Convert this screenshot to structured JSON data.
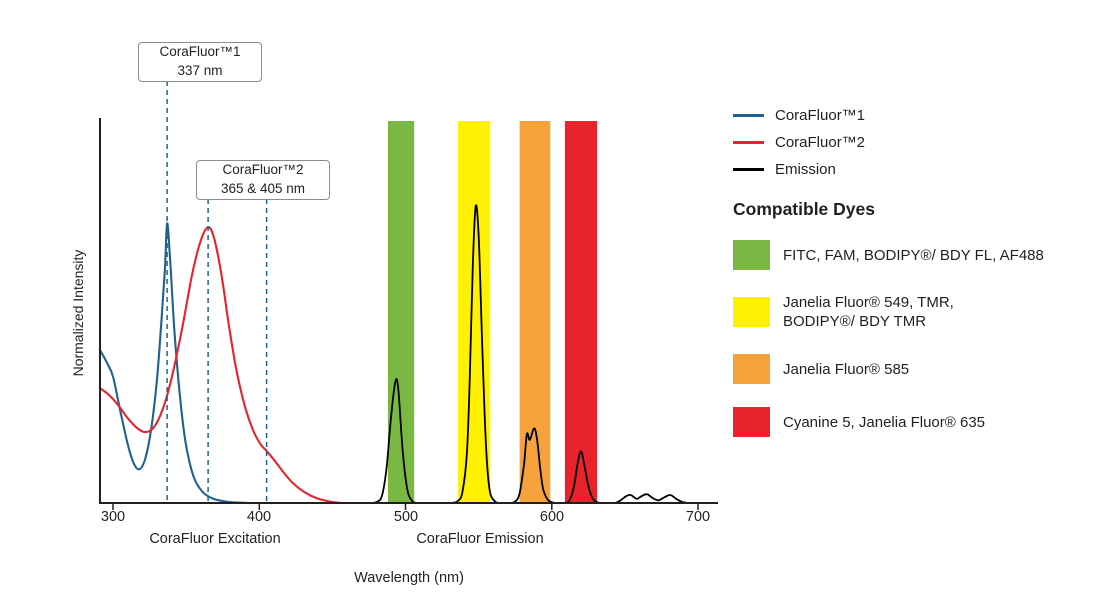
{
  "chart_data": {
    "type": "line",
    "title": "",
    "xlabel": "Wavelength (nm)",
    "ylabel": "Normalized Intensity",
    "x_ticks": [
      "300",
      "400",
      "500",
      "600",
      "700"
    ],
    "x_range_nm": [
      300,
      713
    ],
    "ylim": [
      0,
      1
    ],
    "grid": false,
    "legend_position": "right",
    "section_labels": [
      {
        "label": "CoraFluor Excitation",
        "center_nm": 370
      },
      {
        "label": "CoraFluor Emission",
        "center_nm": 551
      }
    ],
    "bands": [
      {
        "name": "green",
        "color": "#78b843",
        "from_nm": 488,
        "to_nm": 506
      },
      {
        "name": "yellow",
        "color": "#fef102",
        "from_nm": 536,
        "to_nm": 558
      },
      {
        "name": "orange",
        "color": "#f6a23c",
        "from_nm": 578,
        "to_nm": 599
      },
      {
        "name": "red",
        "color": "#e8232b",
        "from_nm": 609,
        "to_nm": 631
      }
    ],
    "series": [
      {
        "name": "CoraFluor™1",
        "color": "#1f618f",
        "points": [
          [
            291,
            0.4
          ],
          [
            296,
            0.365
          ],
          [
            300,
            0.33
          ],
          [
            305,
            0.24
          ],
          [
            310,
            0.155
          ],
          [
            314,
            0.105
          ],
          [
            318,
            0.088
          ],
          [
            322,
            0.115
          ],
          [
            326,
            0.19
          ],
          [
            330,
            0.32
          ],
          [
            333,
            0.47
          ],
          [
            335.5,
            0.61
          ],
          [
            337,
            0.73
          ],
          [
            339,
            0.64
          ],
          [
            342,
            0.45
          ],
          [
            346,
            0.27
          ],
          [
            350,
            0.15
          ],
          [
            355,
            0.07
          ],
          [
            361,
            0.03
          ],
          [
            368,
            0.012
          ],
          [
            377,
            0.004
          ],
          [
            386,
            0.001
          ],
          [
            394,
            0
          ]
        ]
      },
      {
        "name": "CoraFluor™2",
        "color": "#e8232b",
        "points": [
          [
            291,
            0.3
          ],
          [
            297,
            0.283
          ],
          [
            303,
            0.258
          ],
          [
            310,
            0.222
          ],
          [
            316,
            0.197
          ],
          [
            322,
            0.185
          ],
          [
            328,
            0.198
          ],
          [
            334,
            0.245
          ],
          [
            340,
            0.325
          ],
          [
            347,
            0.45
          ],
          [
            354,
            0.595
          ],
          [
            360,
            0.685
          ],
          [
            365,
            0.72
          ],
          [
            369,
            0.693
          ],
          [
            374,
            0.6
          ],
          [
            379,
            0.47
          ],
          [
            384,
            0.355
          ],
          [
            390,
            0.255
          ],
          [
            396,
            0.188
          ],
          [
            401,
            0.153
          ],
          [
            405,
            0.136
          ],
          [
            410,
            0.113
          ],
          [
            416,
            0.083
          ],
          [
            423,
            0.052
          ],
          [
            431,
            0.028
          ],
          [
            439,
            0.013
          ],
          [
            448,
            0.004
          ],
          [
            456,
            0
          ]
        ]
      },
      {
        "name": "Emission",
        "color": "#000000",
        "points": [
          [
            452,
            0
          ],
          [
            468,
            0
          ],
          [
            477,
            0
          ],
          [
            481,
            0.004
          ],
          [
            484,
            0.02
          ],
          [
            487,
            0.09
          ],
          [
            490,
            0.22
          ],
          [
            493,
            0.315
          ],
          [
            495,
            0.3
          ],
          [
            498,
            0.14
          ],
          [
            501,
            0.04
          ],
          [
            504,
            0.008
          ],
          [
            508,
            0
          ],
          [
            520,
            0
          ],
          [
            531,
            0
          ],
          [
            536,
            0.006
          ],
          [
            539,
            0.03
          ],
          [
            542,
            0.13
          ],
          [
            544,
            0.33
          ],
          [
            546,
            0.62
          ],
          [
            548,
            0.775
          ],
          [
            550,
            0.7
          ],
          [
            552,
            0.47
          ],
          [
            554,
            0.24
          ],
          [
            556,
            0.09
          ],
          [
            558,
            0.025
          ],
          [
            561,
            0.005
          ],
          [
            564,
            0
          ],
          [
            571,
            0
          ],
          [
            575,
            0.004
          ],
          [
            578,
            0.025
          ],
          [
            581,
            0.1
          ],
          [
            583,
            0.18
          ],
          [
            585,
            0.165
          ],
          [
            588,
            0.195
          ],
          [
            590,
            0.165
          ],
          [
            592,
            0.095
          ],
          [
            594,
            0.038
          ],
          [
            597,
            0.01
          ],
          [
            600,
            0.002
          ],
          [
            604,
            0
          ],
          [
            609,
            0
          ],
          [
            612,
            0.006
          ],
          [
            615,
            0.04
          ],
          [
            618,
            0.11
          ],
          [
            620,
            0.135
          ],
          [
            622,
            0.105
          ],
          [
            625,
            0.045
          ],
          [
            628,
            0.012
          ],
          [
            631,
            0.002
          ],
          [
            635,
            0
          ],
          [
            643,
            0
          ],
          [
            647,
            0.007
          ],
          [
            651,
            0.018
          ],
          [
            654,
            0.021
          ],
          [
            658,
            0.011
          ],
          [
            661,
            0.017
          ],
          [
            665,
            0.023
          ],
          [
            669,
            0.013
          ],
          [
            673,
            0.007
          ],
          [
            677,
            0.015
          ],
          [
            681,
            0.021
          ],
          [
            685,
            0.011
          ],
          [
            689,
            0.003
          ],
          [
            693,
            0
          ]
        ]
      }
    ],
    "annotations": [
      {
        "lines": [
          "CoraFluor™1",
          "337 nm"
        ],
        "marker_nm": [
          337
        ],
        "marker_color": "#1f618f"
      },
      {
        "lines": [
          "CoraFluor™2",
          "365 & 405 nm"
        ],
        "marker_nm": [
          365,
          405
        ],
        "marker_color": "#1f618f"
      }
    ]
  },
  "legend": {
    "line_entries": [
      {
        "label": "CoraFluor™1",
        "color": "#1f618f"
      },
      {
        "label": "CoraFluor™2",
        "color": "#e8232b"
      },
      {
        "label": "Emission",
        "color": "#000000"
      }
    ],
    "dyes_heading": "Compatible Dyes",
    "dye_entries": [
      {
        "color": "#78b843",
        "line1": "FITC, FAM, BODIPY®/ BDY FL, AF488",
        "line2": ""
      },
      {
        "color": "#fef102",
        "line1": "Janelia Fluor® 549, TMR,",
        "line2": "BODIPY®/ BDY TMR"
      },
      {
        "color": "#f6a23c",
        "line1": "Janelia Fluor® 585",
        "line2": ""
      },
      {
        "color": "#e8232b",
        "line1": "Cyanine 5, Janelia Fluor® 635",
        "line2": ""
      }
    ]
  }
}
